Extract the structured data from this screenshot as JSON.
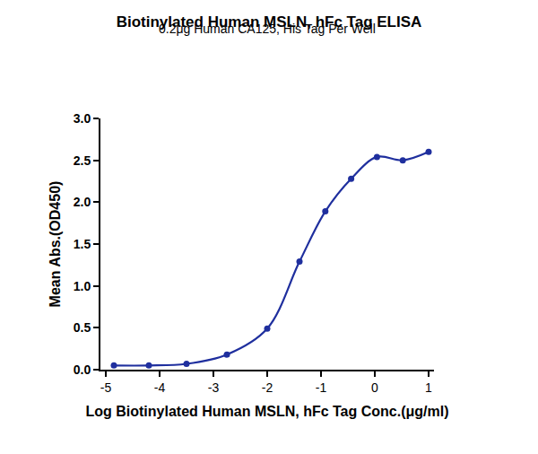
{
  "chart_data": {
    "type": "scatter",
    "title": "Biotinylated Human MSLN, hFc Tag ELISA",
    "subtitle": "0.2μg Human CA125, His Tag Per Well",
    "x_label": "Log Biotinylated Human MSLN, hFc Tag Conc.(μg/ml)",
    "y_label": "Mean Abs.(OD450)",
    "x": [
      -4.85,
      -4.2,
      -3.5,
      -2.75,
      -2.0,
      -1.4,
      -0.92,
      -0.44,
      0.04,
      0.52,
      1.0
    ],
    "values": [
      0.05,
      0.05,
      0.07,
      0.18,
      0.49,
      1.29,
      1.89,
      2.28,
      2.54,
      2.5,
      2.6
    ],
    "color": "#1f2f9e",
    "marker": "circle",
    "line_style": "solid",
    "xlim": [
      -5.1,
      1.1
    ],
    "xticks": [
      -5,
      -4,
      -3,
      -2,
      -1,
      0,
      1
    ],
    "ylim": [
      0,
      3
    ],
    "yticks": [
      {
        "value": 0,
        "label": "0.0"
      },
      0.5,
      {
        "value": 1,
        "label": "1.0"
      },
      1.5,
      {
        "value": 2,
        "label": "2.0"
      },
      2.5,
      {
        "value": 3,
        "label": "3.0"
      }
    ],
    "grid": false
  }
}
